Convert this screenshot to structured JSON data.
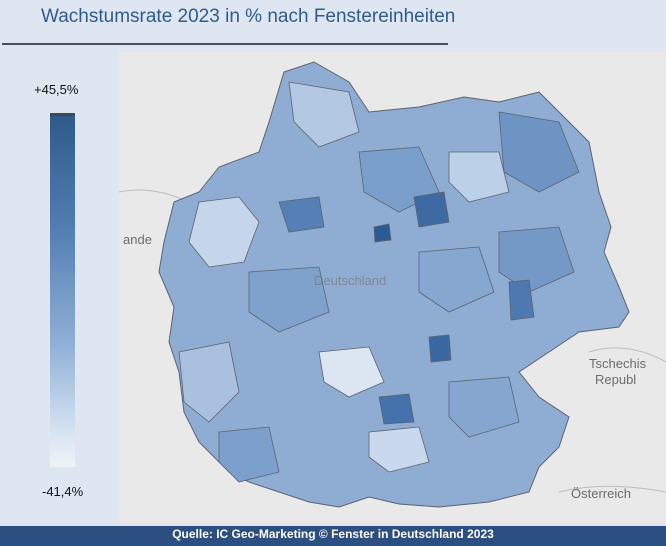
{
  "title": "Wachstumsrate 2023 in % nach Fenstereinheiten",
  "legend": {
    "max_label": "+45,5%",
    "min_label": "-41,4%",
    "colors": [
      "#2f5b8a",
      "#4f7bb0",
      "#8fb0d6",
      "#dbe7f3",
      "#eef3f8"
    ]
  },
  "map": {
    "background_color": "#e9e9e9",
    "region_stroke": "#5b6470",
    "labels": {
      "west": "ande",
      "center": "Deutschland",
      "czech_1": "Tschechis",
      "czech_2": "Republ",
      "austria": "Österreich"
    }
  },
  "footer": {
    "text": "Quelle: IC Geo-Marketing © Fenster in Deutschland 2023"
  }
}
